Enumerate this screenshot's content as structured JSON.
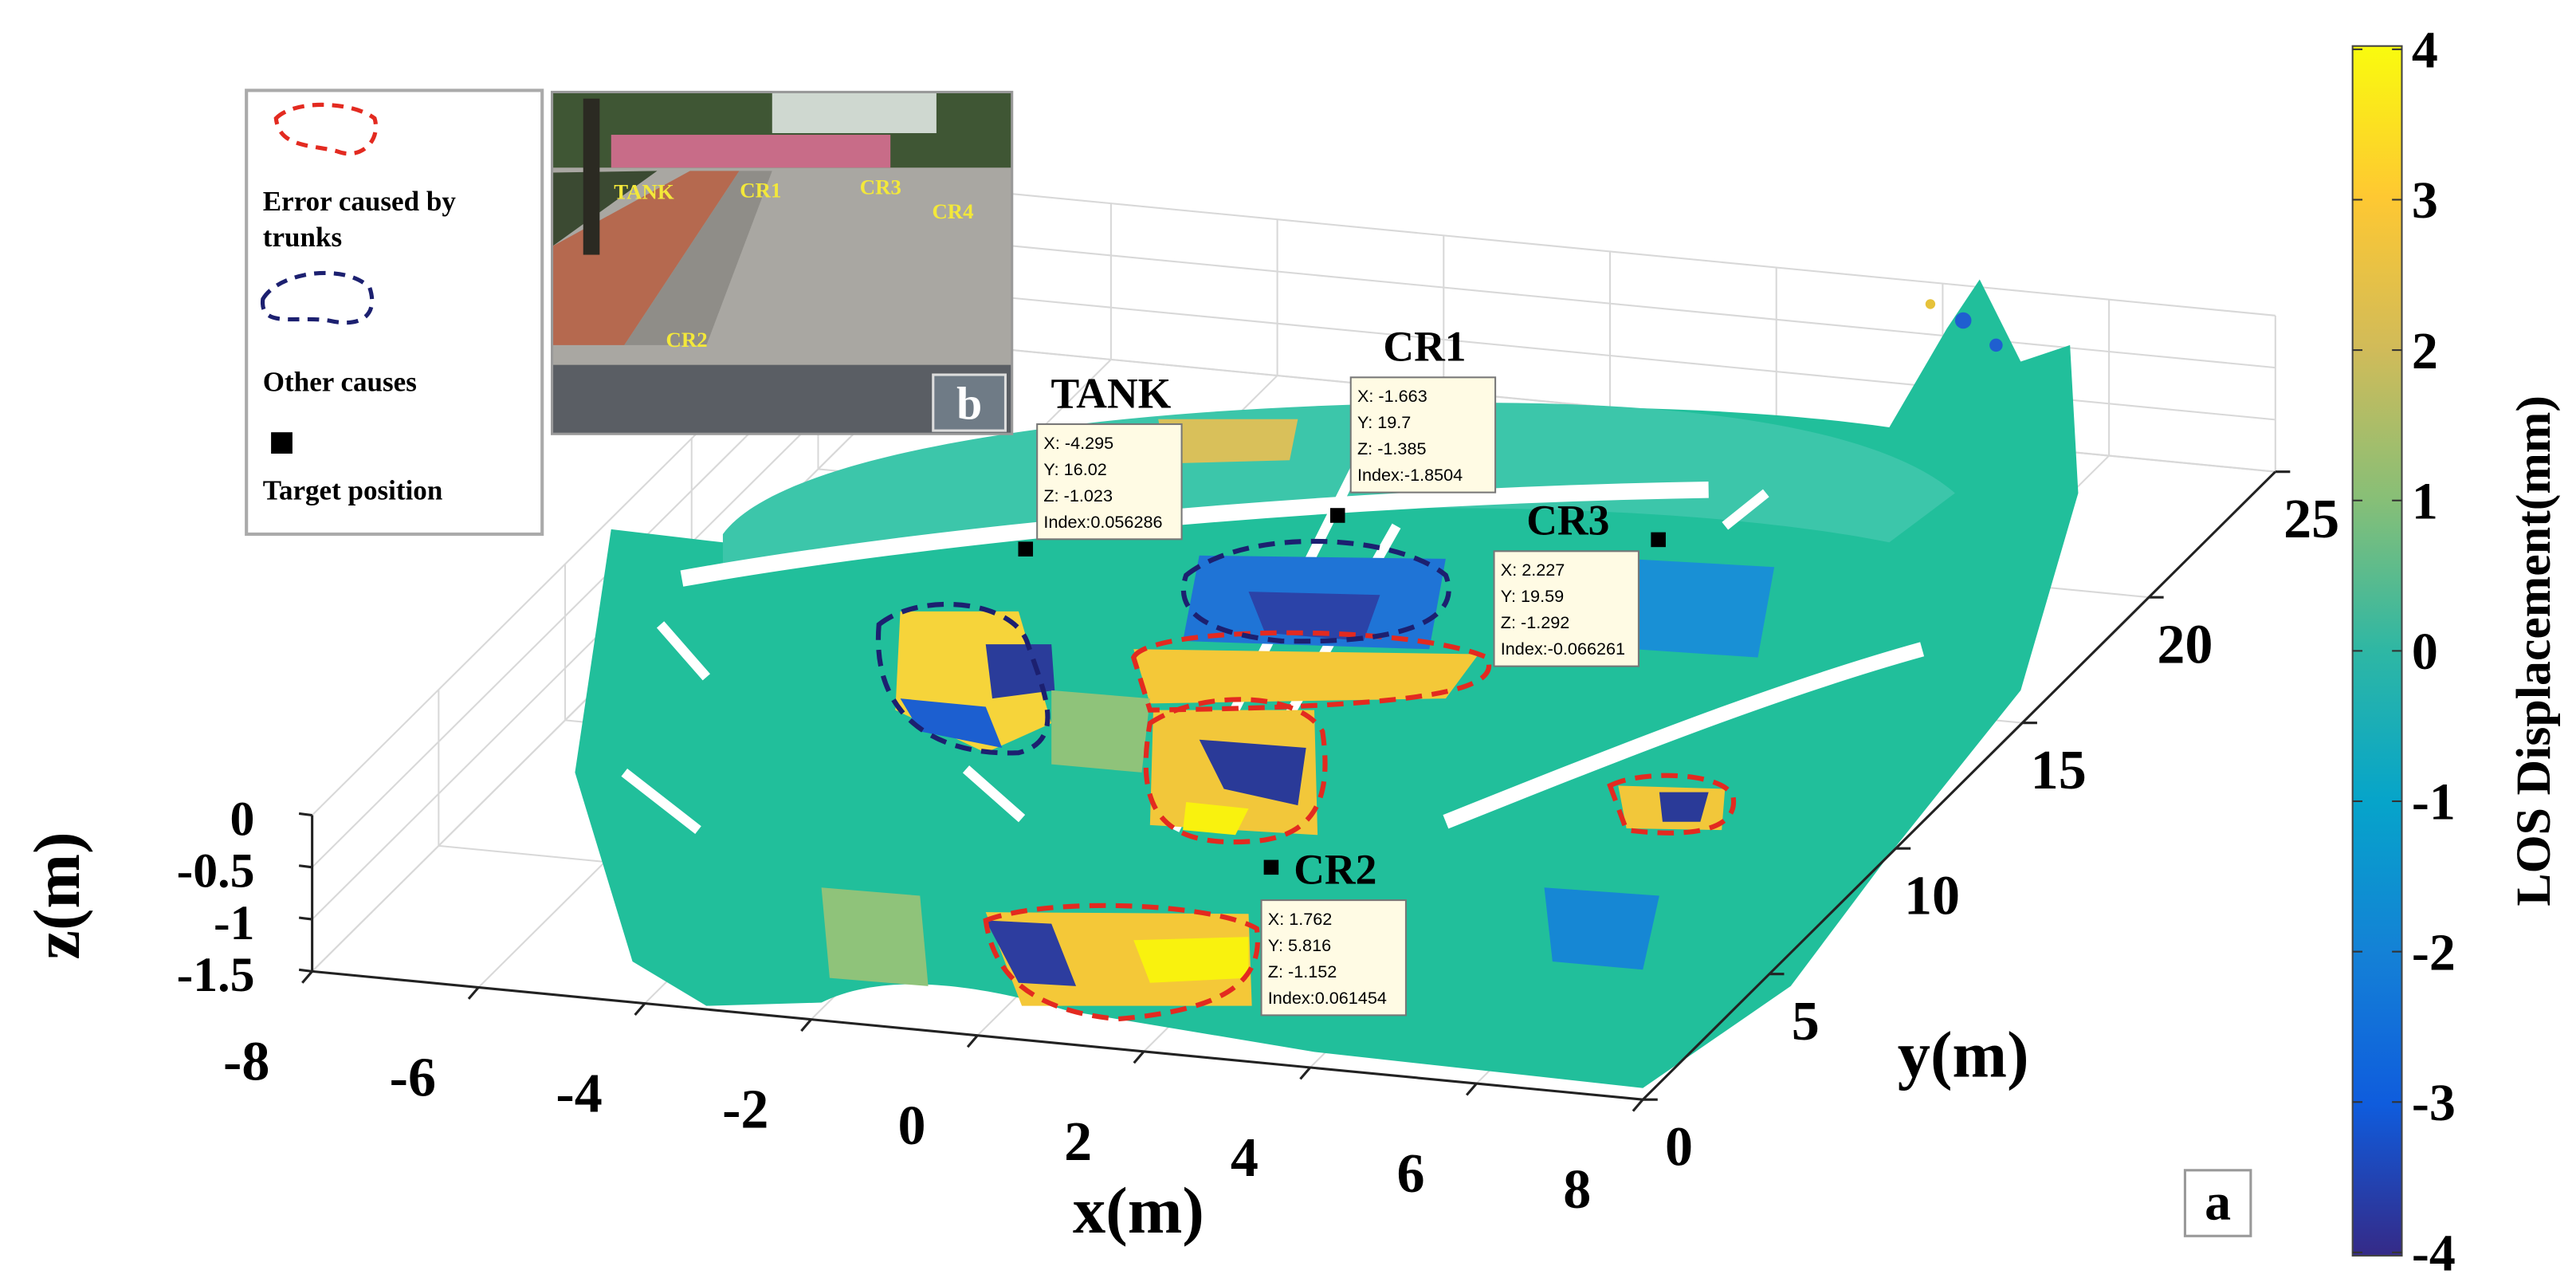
{
  "chart_data": {
    "type": "scatter3d",
    "xlabel": "x(m)",
    "ylabel": "y(m)",
    "zlabel": "z(m)",
    "xlim": [
      -8,
      8
    ],
    "xticks": [
      -8,
      -6,
      -4,
      -2,
      0,
      2,
      4,
      6,
      8
    ],
    "ylim": [
      0,
      25
    ],
    "yticks": [
      0,
      5,
      10,
      15,
      20,
      25
    ],
    "zlim": [
      -1.5,
      0
    ],
    "zticks": [
      -1.5,
      -1,
      -0.5,
      0
    ],
    "grid": true,
    "colorbar": {
      "label": "LOS Displacement(mm)",
      "lim": [
        -4,
        4
      ],
      "ticks": [
        -4,
        -3,
        -2,
        -1,
        0,
        1,
        2,
        3,
        4
      ],
      "colors": [
        "#352a87",
        "#0f5cdd",
        "#1481d6",
        "#06a4ca",
        "#2eb7a4",
        "#87bf77",
        "#d1bb59",
        "#fec832",
        "#f9fb0e"
      ]
    },
    "datatips": [
      {
        "name": "TANK",
        "x": {
          "value": -4.295,
          "label": "X: -4.295"
        },
        "y": {
          "value": 16.02,
          "label": "Y: 16.02"
        },
        "z": {
          "value": -1.023,
          "label": "Z: -1.023"
        },
        "index": "Index:0.056286"
      },
      {
        "name": "CR1",
        "x": {
          "value": -1.663,
          "label": "X: -1.663"
        },
        "y": {
          "value": 19.7,
          "label": "Y: 19.7"
        },
        "z": {
          "value": -1.385,
          "label": "Z: -1.385"
        },
        "index": "Index:-1.8504"
      },
      {
        "name": "CR3",
        "x": {
          "value": 2.227,
          "label": "X: 2.227"
        },
        "y": {
          "value": 19.59,
          "label": "Y: 19.59"
        },
        "z": {
          "value": -1.292,
          "label": "Z: -1.292"
        },
        "index": "Index:-0.066261"
      },
      {
        "name": "CR2",
        "x": {
          "value": 1.762,
          "label": "X: 1.762"
        },
        "y": {
          "value": 5.816,
          "label": "Y: 5.816"
        },
        "z": {
          "value": -1.152,
          "label": "Z: -1.152"
        },
        "index": "Index:0.061454"
      }
    ],
    "legend": {
      "entries": [
        "Error caused by trunks",
        "Other causes",
        "Target position"
      ]
    },
    "panel_label": "a",
    "inset": {
      "panel_label": "b",
      "labels": [
        "TANK",
        "CR1",
        "CR3",
        "CR4",
        "CR2"
      ]
    }
  }
}
